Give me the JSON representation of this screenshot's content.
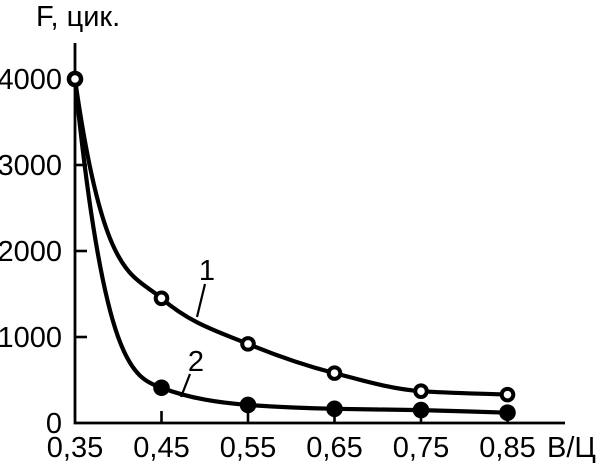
{
  "page": {
    "background": "#ffffff",
    "ink_color": "#000000"
  },
  "chart_data": {
    "type": "line",
    "ylabel": "F, цик.",
    "xlabel": "В/Ц",
    "x": [
      0.35,
      0.45,
      0.55,
      0.65,
      0.75,
      0.85
    ],
    "x_tick_labels": [
      "0,35",
      "0,45",
      "0,55",
      "0,65",
      "0,75",
      "0,85"
    ],
    "y_ticks": [
      0,
      1000,
      2000,
      3000,
      4000
    ],
    "y_tick_labels": [
      "0",
      "1000",
      "2000",
      "3000",
      "4000"
    ],
    "xlim": [
      0.35,
      0.92
    ],
    "ylim": [
      0,
      4400
    ],
    "grid": false,
    "legend": "none",
    "series": [
      {
        "name": "1",
        "marker": "open-circle",
        "color": "#000000",
        "values": [
          4000,
          1450,
          920,
          580,
          370,
          330
        ]
      },
      {
        "name": "2",
        "marker": "filled-circle",
        "color": "#000000",
        "values": [
          4000,
          410,
          210,
          165,
          150,
          120
        ]
      }
    ],
    "annotations": [
      {
        "text": "1",
        "points_to": "curve with open circles"
      },
      {
        "text": "2",
        "points_to": "curve with filled circles"
      }
    ]
  }
}
